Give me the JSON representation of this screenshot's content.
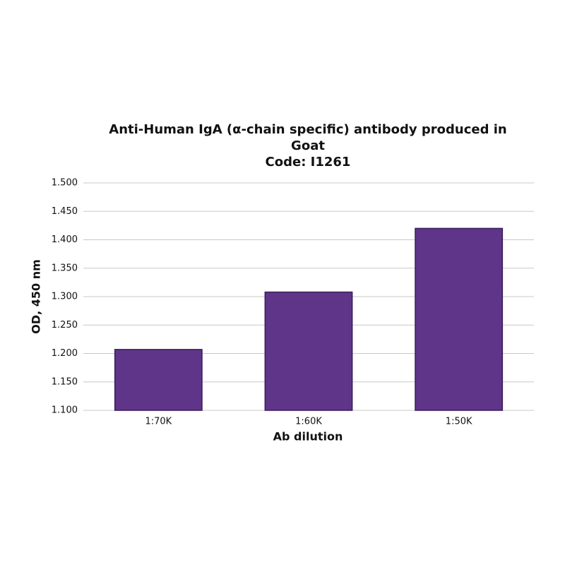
{
  "chart_data": {
    "type": "bar",
    "title": "Anti-Human IgA (α-chain specific) antibody produced in Goat",
    "subtitle": "Code: I1261",
    "x_label": "Ab dilution",
    "y_label": "OD, 450 nm",
    "categories": [
      "1:70K",
      "1:60K",
      "1:50K"
    ],
    "values": [
      1.207,
      1.308,
      1.42
    ],
    "color": "#5e3589",
    "ylim": [
      1.1,
      1.5
    ],
    "yticks": [
      {
        "value": 1.1,
        "label": "1.100"
      },
      {
        "value": 1.15,
        "label": "1.150"
      },
      {
        "value": 1.2,
        "label": "1.200"
      },
      {
        "value": 1.25,
        "label": "1.250"
      },
      {
        "value": 1.3,
        "label": "1.300"
      },
      {
        "value": 1.35,
        "label": "1.350"
      },
      {
        "value": 1.4,
        "label": "1.400"
      },
      {
        "value": 1.45,
        "label": "1.450"
      },
      {
        "value": 1.5,
        "label": "1.500"
      }
    ],
    "grid": true
  }
}
